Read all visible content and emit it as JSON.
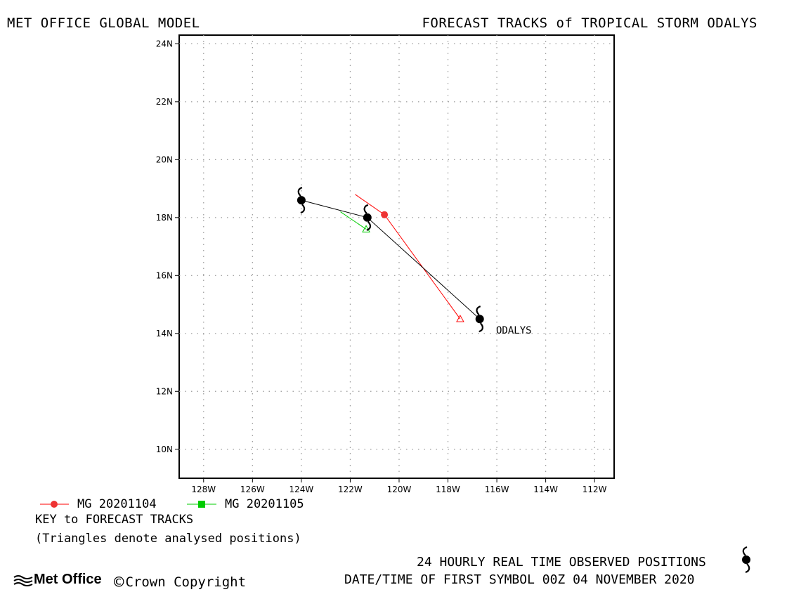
{
  "header": {
    "left": "MET OFFICE GLOBAL MODEL",
    "right": "FORECAST TRACKS of TROPICAL STORM ODALYS"
  },
  "map": {
    "lon_range": [
      -129,
      -111.2
    ],
    "lat_range": [
      9,
      24.3
    ],
    "lon_ticks": [
      {
        "lon": -128,
        "label": "128W"
      },
      {
        "lon": -126,
        "label": "126W"
      },
      {
        "lon": -124,
        "label": "124W"
      },
      {
        "lon": -122,
        "label": "122W"
      },
      {
        "lon": -120,
        "label": "120W"
      },
      {
        "lon": -118,
        "label": "118W"
      },
      {
        "lon": -116,
        "label": "116W"
      },
      {
        "lon": -114,
        "label": "114W"
      },
      {
        "lon": -112,
        "label": "112W"
      }
    ],
    "lat_ticks": [
      {
        "lat": 10,
        "label": "10N"
      },
      {
        "lat": 12,
        "label": "12N"
      },
      {
        "lat": 14,
        "label": "14N"
      },
      {
        "lat": 16,
        "label": "16N"
      },
      {
        "lat": 18,
        "label": "18N"
      },
      {
        "lat": 20,
        "label": "20N"
      },
      {
        "lat": 22,
        "label": "22N"
      },
      {
        "lat": 24,
        "label": "24N"
      }
    ],
    "grid": "dotted",
    "observed_track": {
      "color": "#000000",
      "points": [
        [
          -116.7,
          14.5
        ],
        [
          -121.3,
          18.0
        ],
        [
          -124.0,
          18.6
        ]
      ]
    },
    "forecast_tracks": [
      {
        "name": "MG 20201104",
        "color": "#ff0000",
        "marker_color": "#ee3333",
        "triangle": [
          -117.5,
          14.5
        ],
        "points": [
          [
            -117.5,
            14.5
          ],
          [
            -120.6,
            18.1
          ],
          [
            -121.8,
            18.8
          ]
        ],
        "circle": [
          -120.6,
          18.1
        ]
      },
      {
        "name": "MG 20201105",
        "color": "#00cc00",
        "marker_color": "#00cc00",
        "triangle": [
          -121.35,
          17.6
        ],
        "points": [
          [
            -121.35,
            17.6
          ],
          [
            -122.4,
            18.2
          ]
        ]
      }
    ],
    "storm_symbols": [
      [
        -116.7,
        14.5
      ],
      [
        -121.3,
        18.0
      ],
      [
        -124.0,
        18.6
      ]
    ],
    "storm_label": "ODALYS"
  },
  "key": {
    "entry1": "MG 20201104",
    "entry2": "MG 20201105",
    "title": "KEY to FORECAST TRACKS",
    "note": "(Triangles denote analysed positions)"
  },
  "footer": {
    "observed": "24 HOURLY REAL TIME OBSERVED POSITIONS",
    "datetime": "DATE/TIME OF FIRST SYMBOL 00Z 04 NOVEMBER 2020",
    "logo": "Met Office",
    "copyright": "Crown Copyright"
  }
}
